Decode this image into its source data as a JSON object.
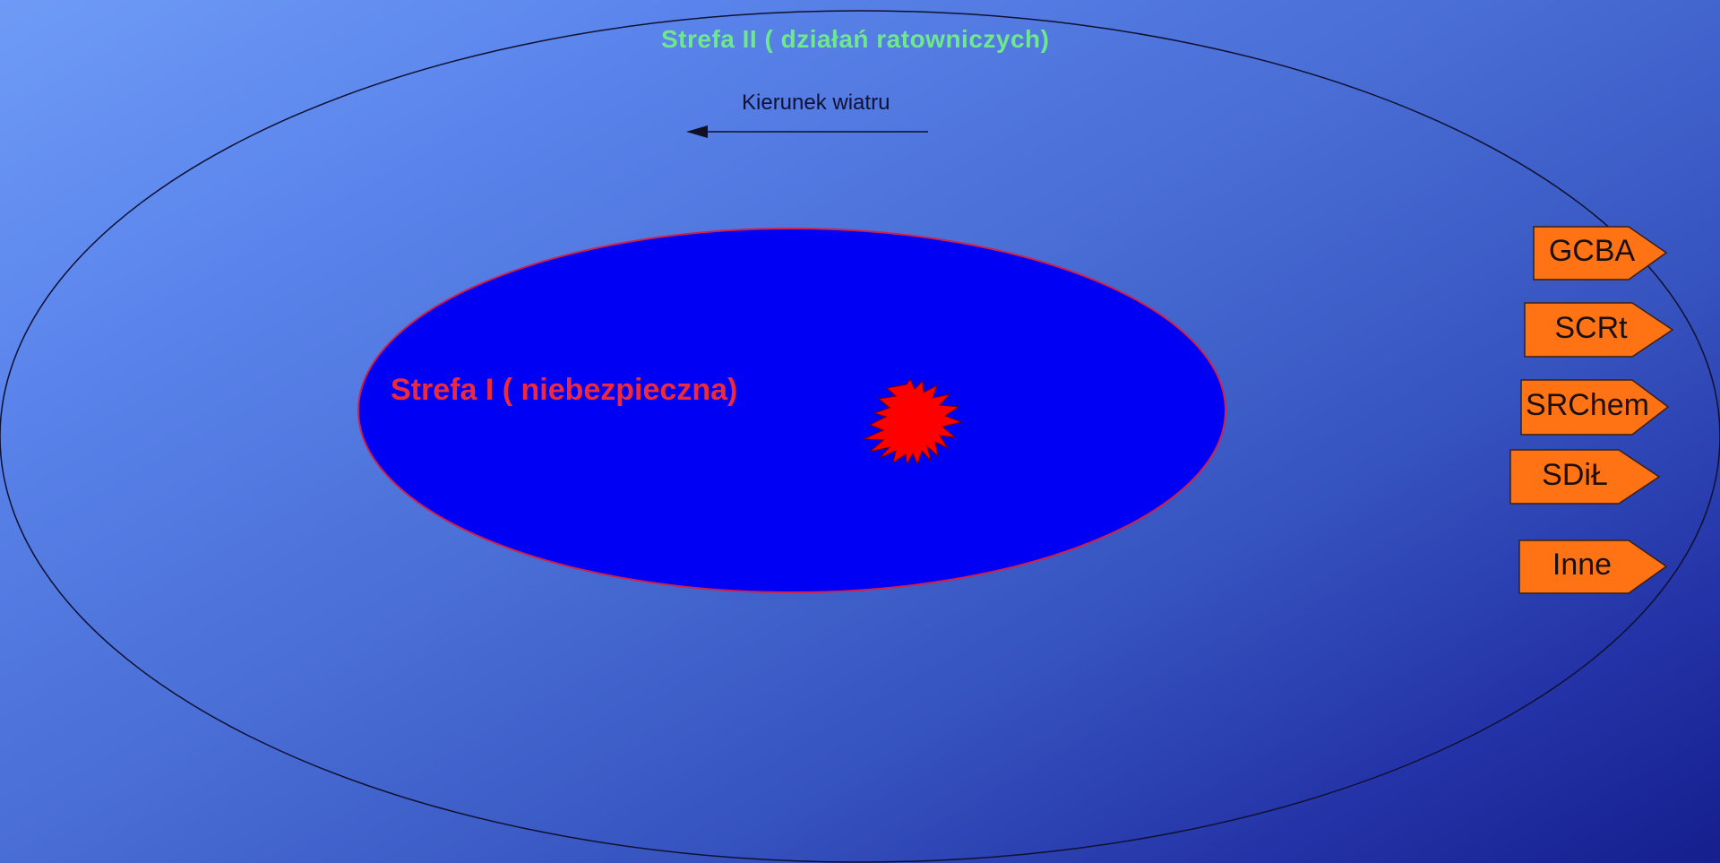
{
  "zone2": {
    "title": "Strefa II ( działań ratowniczych)"
  },
  "wind": {
    "label": "Kierunek wiatru",
    "direction": "left"
  },
  "zone1": {
    "title": "Strefa I ( niebezpieczna)"
  },
  "units": [
    {
      "label": "GCBA"
    },
    {
      "label": "SCRt"
    },
    {
      "label": "SRChem"
    },
    {
      "label": "SDiŁ"
    },
    {
      "label": "Inne"
    }
  ],
  "colors": {
    "zone1_fill": "#0000f5",
    "zone1_outline": "#d0204a",
    "zone2_outline": "#101030",
    "incident": "#ff0000",
    "unit_tag": "#ff7315",
    "zone2_title": "#6ee88c",
    "zone1_title": "#ee2a3a"
  }
}
